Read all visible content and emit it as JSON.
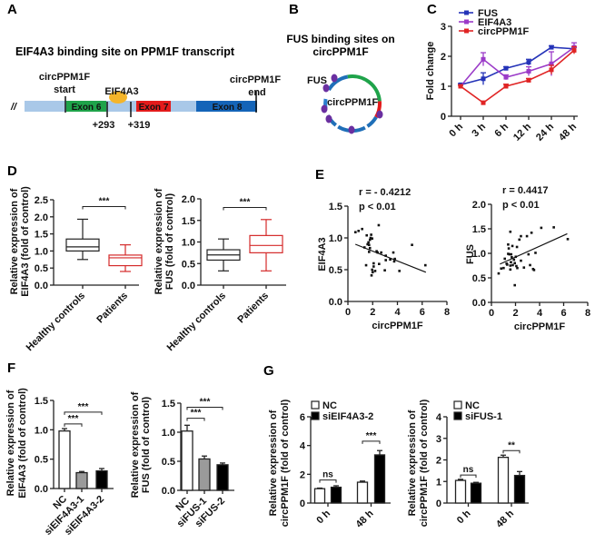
{
  "panels": {
    "A": "A",
    "B": "B",
    "C": "C",
    "D": "D",
    "E": "E",
    "F": "F",
    "G": "G"
  },
  "panel_a": {
    "title": "EIF4A3 binding site on PPM1F transcript",
    "break_mark": "//",
    "start_label": [
      "circPPM1F",
      "start"
    ],
    "end_label": [
      "circPPM1F",
      "end"
    ],
    "protein": "EIF4A3",
    "exons": [
      "Exon 6",
      "Exon 7",
      "Exon 8"
    ],
    "positions": [
      "+293",
      "+319"
    ],
    "colors": {
      "intron": "#a9c8e8",
      "exon6": "#1fa34a",
      "exon7": "#e31b1b",
      "exon8": "#1464b8",
      "protein": "#f5b52a"
    }
  },
  "panel_b": {
    "title": [
      "FUS binding sites on",
      "circPPM1F"
    ],
    "protein": "FUS",
    "circ": "circPPM1F",
    "colors": {
      "dot": "#6a2fa0"
    }
  },
  "chart_data": [
    {
      "id": "C",
      "type": "line",
      "ylabel": "Fold change",
      "ylim": [
        0,
        3
      ],
      "yticks": [
        0,
        1,
        2,
        3
      ],
      "categories": [
        "0 h",
        "3 h",
        "6 h",
        "12 h",
        "24 h",
        "48 h"
      ],
      "series": [
        {
          "name": "FUS",
          "color": "#2433b8",
          "values": [
            1.05,
            1.25,
            1.6,
            1.8,
            2.3,
            2.25
          ],
          "err": [
            0.03,
            0.2,
            0.05,
            0.1,
            0.05,
            0.05
          ]
        },
        {
          "name": "EIF4A3",
          "color": "#9b3bc8",
          "values": [
            1.0,
            1.9,
            1.3,
            1.5,
            1.75,
            2.3
          ],
          "err": [
            0.03,
            0.22,
            0.08,
            0.15,
            0.4,
            0.15
          ]
        },
        {
          "name": "circPPM1F",
          "color": "#e02424",
          "values": [
            1.0,
            0.45,
            1.0,
            1.2,
            1.55,
            2.2
          ],
          "err": [
            0.03,
            0.05,
            0.07,
            0.06,
            0.15,
            0.12
          ]
        }
      ]
    },
    {
      "id": "D1",
      "type": "box",
      "ylabel": [
        "Relative expression of",
        "EIF4A3 (fold of control)"
      ],
      "ylim": [
        0,
        2.5
      ],
      "yticks": [
        "0.0",
        "0.5",
        "1.0",
        "1.5",
        "2.0",
        "2.5"
      ],
      "categories": [
        "Healthy controls",
        "Patients"
      ],
      "colors": [
        "#222222",
        "#d42a2a"
      ],
      "boxes": [
        [
          0.75,
          1.0,
          1.12,
          1.35,
          1.93
        ],
        [
          0.4,
          0.57,
          0.8,
          0.88,
          1.18
        ]
      ],
      "sig": "***",
      "sig_y": 2.3
    },
    {
      "id": "D2",
      "type": "box",
      "ylabel": [
        "Relative expression of",
        "FUS (fold of control)"
      ],
      "ylim": [
        0,
        2.0
      ],
      "yticks": [
        "0.0",
        "0.5",
        "1.0",
        "1.5",
        "2.0"
      ],
      "categories": [
        "Healthy controls",
        "Patients"
      ],
      "colors": [
        "#222222",
        "#d42a2a"
      ],
      "boxes": [
        [
          0.33,
          0.58,
          0.7,
          0.82,
          1.07
        ],
        [
          0.33,
          0.75,
          0.92,
          1.15,
          1.52
        ]
      ],
      "sig": "***",
      "sig_y": 1.8
    },
    {
      "id": "E1",
      "type": "scatter",
      "xlabel": "circPPM1F",
      "ylabel": "EIF4A3",
      "xlim": [
        0,
        8
      ],
      "ylim": [
        0,
        1.5
      ],
      "xticks": [
        "0",
        "2",
        "4",
        "6",
        "8"
      ],
      "yticks": [
        "0.0",
        "0.5",
        "1.0",
        "1.5"
      ],
      "annotation": [
        "r = - 0.4212",
        "p < 0.01"
      ],
      "fit": [
        [
          0.6,
          0.9
        ],
        [
          6.3,
          0.46
        ]
      ],
      "points": [
        [
          0.61,
          1.09
        ],
        [
          0.86,
          1.11
        ],
        [
          1.15,
          1.14
        ],
        [
          1.34,
          0.85
        ],
        [
          1.52,
          1.04
        ],
        [
          1.59,
          0.9
        ],
        [
          1.66,
          0.93
        ],
        [
          1.71,
          0.89
        ],
        [
          1.78,
          0.97
        ],
        [
          1.83,
          1.0
        ],
        [
          1.88,
          1.05
        ],
        [
          1.71,
          0.78
        ],
        [
          1.96,
          0.99
        ],
        [
          1.78,
          0.84
        ],
        [
          1.47,
          0.57
        ],
        [
          2.08,
          0.6
        ],
        [
          1.96,
          0.5
        ],
        [
          2.0,
          0.46
        ],
        [
          1.91,
          0.41
        ],
        [
          2.2,
          0.48
        ],
        [
          2.08,
          0.55
        ],
        [
          2.32,
          0.79
        ],
        [
          2.49,
          1.2
        ],
        [
          2.4,
          0.77
        ],
        [
          2.52,
          0.59
        ],
        [
          2.69,
          0.77
        ],
        [
          3.06,
          0.72
        ],
        [
          2.98,
          0.49
        ],
        [
          3.06,
          0.65
        ],
        [
          3.42,
          0.66
        ],
        [
          3.67,
          0.77
        ],
        [
          3.79,
          0.67
        ],
        [
          3.74,
          0.63
        ],
        [
          4.16,
          0.48
        ],
        [
          5.18,
          0.89
        ],
        [
          6.26,
          0.57
        ]
      ]
    },
    {
      "id": "E2",
      "type": "scatter",
      "xlabel": "circPPM1F",
      "ylabel": "FUS",
      "xlim": [
        0,
        8
      ],
      "ylim": [
        0,
        2.0
      ],
      "xticks": [
        "0",
        "2",
        "4",
        "6",
        "8"
      ],
      "yticks": [
        "0.0",
        "0.5",
        "1.0",
        "1.5",
        "2.0"
      ],
      "annotation": [
        "r = 0.4417",
        "p < 0.01"
      ],
      "fit": [
        [
          0.7,
          0.78
        ],
        [
          6.3,
          1.4
        ]
      ],
      "points": [
        [
          0.6,
          0.59
        ],
        [
          0.81,
          0.69
        ],
        [
          1.01,
          0.7
        ],
        [
          1.11,
          0.89
        ],
        [
          1.26,
          0.79
        ],
        [
          1.31,
          0.77
        ],
        [
          1.39,
          1.18
        ],
        [
          1.44,
          1.1
        ],
        [
          1.39,
          0.99
        ],
        [
          1.49,
          0.98
        ],
        [
          1.57,
          0.75
        ],
        [
          1.57,
          0.67
        ],
        [
          1.62,
          0.82
        ],
        [
          1.57,
          1.44
        ],
        [
          1.64,
          0.98
        ],
        [
          1.69,
          0.92
        ],
        [
          1.74,
          1.15
        ],
        [
          1.77,
          0.76
        ],
        [
          1.87,
          0.87
        ],
        [
          1.94,
          0.8
        ],
        [
          2.02,
          0.93
        ],
        [
          2.07,
          0.74
        ],
        [
          2.12,
          1.13
        ],
        [
          2.15,
          0.7
        ],
        [
          1.94,
          0.35
        ],
        [
          2.32,
          1.28
        ],
        [
          2.45,
          1.35
        ],
        [
          2.45,
          0.85
        ],
        [
          2.7,
          0.71
        ],
        [
          2.95,
          1.35
        ],
        [
          3.08,
          0.98
        ],
        [
          3.21,
          0.76
        ],
        [
          3.33,
          1.42
        ],
        [
          3.46,
          0.68
        ],
        [
          3.54,
          0.66
        ],
        [
          3.66,
          1.01
        ],
        [
          4.14,
          1.52
        ],
        [
          5.18,
          1.53
        ],
        [
          6.34,
          1.29
        ]
      ]
    },
    {
      "id": "F1",
      "type": "bar",
      "ylabel": [
        "Relative expression of",
        "EIF4A3 (fold of control)"
      ],
      "ylim": [
        0,
        1.5
      ],
      "yticks": [
        "0.0",
        "0.5",
        "1.0",
        "1.5"
      ],
      "categories": [
        "NC",
        "siEIF4A3-1",
        "siEIF4A3-2"
      ],
      "values": [
        0.98,
        0.27,
        0.3
      ],
      "err": [
        0.04,
        0.02,
        0.04
      ],
      "colors": [
        "#ffffff",
        "#9a9a9a",
        "#000000"
      ],
      "sig": [
        {
          "from": 0,
          "to": 1,
          "y": 1.1,
          "label": "***"
        },
        {
          "from": 0,
          "to": 2,
          "y": 1.3,
          "label": "***"
        }
      ]
    },
    {
      "id": "F2",
      "type": "bar",
      "ylabel": [
        "Relative expression of",
        "FUS (fold of control)"
      ],
      "ylim": [
        0,
        1.5
      ],
      "yticks": [
        "0.0",
        "0.5",
        "1.0",
        "1.5"
      ],
      "categories": [
        "NC",
        "siFUS-1",
        "siFUS-2"
      ],
      "values": [
        1.02,
        0.54,
        0.44
      ],
      "err": [
        0.1,
        0.05,
        0.03
      ],
      "colors": [
        "#ffffff",
        "#9a9a9a",
        "#000000"
      ],
      "sig": [
        {
          "from": 0,
          "to": 1,
          "y": 1.24,
          "label": "***"
        },
        {
          "from": 0,
          "to": 2,
          "y": 1.43,
          "label": "***"
        }
      ]
    },
    {
      "id": "G1",
      "type": "grouped_bar",
      "ylabel": [
        "Relative expression of",
        "circPPM1F (fold of control)"
      ],
      "ylim": [
        0,
        6
      ],
      "yticks": [
        "0",
        "2",
        "4",
        "6"
      ],
      "categories": [
        "0 h",
        "48 h"
      ],
      "series": [
        {
          "name": "NC",
          "color": "#ffffff",
          "values": [
            1.0,
            1.45
          ],
          "err": [
            0.04,
            0.08
          ]
        },
        {
          "name": "siEIF4A3-2",
          "color": "#000000",
          "values": [
            1.1,
            3.35
          ],
          "err": [
            0.1,
            0.3
          ]
        }
      ],
      "sig": [
        {
          "group": 0,
          "y": 1.6,
          "label": "ns"
        },
        {
          "group": 1,
          "y": 4.3,
          "label": "***"
        }
      ]
    },
    {
      "id": "G2",
      "type": "grouped_bar",
      "ylabel": [
        "Relative expression of",
        "circPPM1F (fold of control)"
      ],
      "ylim": [
        0,
        4
      ],
      "yticks": [
        "0",
        "1",
        "2",
        "3",
        "4"
      ],
      "categories": [
        "0 h",
        "48 h"
      ],
      "series": [
        {
          "name": "NC",
          "color": "#ffffff",
          "values": [
            1.05,
            2.12
          ],
          "err": [
            0.05,
            0.1
          ]
        },
        {
          "name": "siFUS-1",
          "color": "#000000",
          "values": [
            0.92,
            1.28
          ],
          "err": [
            0.04,
            0.18
          ]
        }
      ],
      "sig": [
        {
          "group": 0,
          "y": 1.3,
          "label": "ns"
        },
        {
          "group": 1,
          "y": 2.43,
          "label": "**"
        }
      ]
    }
  ]
}
